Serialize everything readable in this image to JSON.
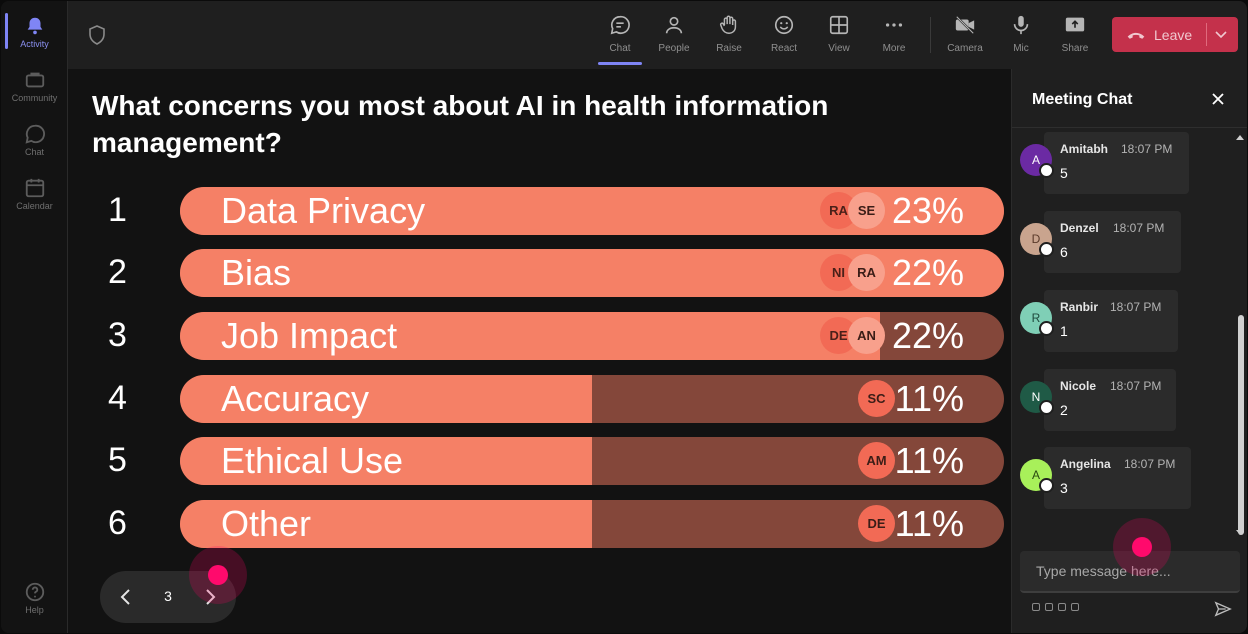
{
  "rail": {
    "items": [
      {
        "label": "Activity",
        "icon": "bell-icon"
      },
      {
        "label": "Community",
        "icon": "community-icon"
      },
      {
        "label": "Chat",
        "icon": "chat-icon"
      },
      {
        "label": "Calendar",
        "icon": "calendar-icon"
      }
    ],
    "help": {
      "label": "Help",
      "icon": "help-icon"
    }
  },
  "toolbar": {
    "chat": "Chat",
    "people": "People",
    "raise": "Raise",
    "react": "React",
    "view": "View",
    "more": "More",
    "camera": "Camera",
    "mic": "Mic",
    "share": "Share",
    "leave": "Leave"
  },
  "poll": {
    "question": "What concerns you most about AI in health information management?",
    "options": [
      {
        "num": "1",
        "label": "Data Privacy",
        "percent": "23%",
        "fill": 1.0,
        "chips": [
          "RA",
          "SE"
        ]
      },
      {
        "num": "2",
        "label": "Bias",
        "percent": "22%",
        "fill": 1.0,
        "chips": [
          "NI",
          "RA"
        ]
      },
      {
        "num": "3",
        "label": "Job Impact",
        "percent": "22%",
        "fill": 0.85,
        "chips": [
          "DE",
          "AN"
        ]
      },
      {
        "num": "4",
        "label": "Accuracy",
        "percent": "11%",
        "fill": 0.5,
        "chips": [
          "SC"
        ]
      },
      {
        "num": "5",
        "label": "Ethical Use",
        "percent": "11%",
        "fill": 0.5,
        "chips": [
          "AM"
        ]
      },
      {
        "num": "6",
        "label": "Other",
        "percent": "11%",
        "fill": 0.5,
        "chips": [
          "DE"
        ]
      }
    ],
    "page": "3"
  },
  "chat": {
    "title": "Meeting Chat",
    "messages": [
      {
        "initial": "A",
        "name": "Amitabh",
        "time": "18:07 PM",
        "text": "5",
        "color": "#6b2aa3",
        "initial_color": "#ffffff"
      },
      {
        "initial": "D",
        "name": "Denzel",
        "time": "18:07 PM",
        "text": "6",
        "color": "#c9a48e",
        "initial_color": "#5a3a2a"
      },
      {
        "initial": "R",
        "name": "Ranbir",
        "time": "18:07 PM",
        "text": "1",
        "color": "#7fcfb6",
        "initial_color": "#1f4a3d"
      },
      {
        "initial": "N",
        "name": "Nicole",
        "time": "18:07 PM",
        "text": "2",
        "color": "#1f5a46",
        "initial_color": "#ffffff"
      },
      {
        "initial": "A",
        "name": "Angelina",
        "time": "18:07 PM",
        "text": "3",
        "color": "#a8f05a",
        "initial_color": "#2a4a10"
      }
    ],
    "placeholder": "Type message here..."
  }
}
